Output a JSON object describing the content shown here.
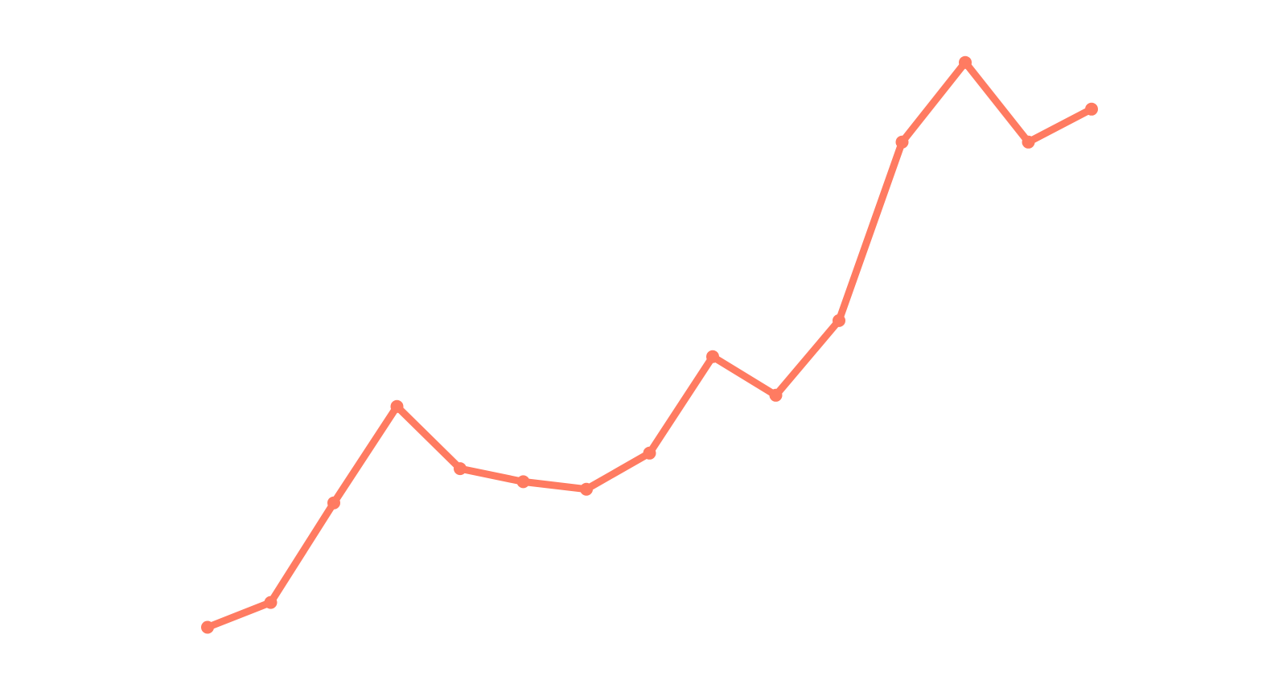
{
  "chart_data": {
    "type": "line",
    "title": "",
    "xlabel": "",
    "ylabel": "",
    "axes_visible": false,
    "grid": false,
    "legend": "none",
    "x": [
      1,
      2,
      3,
      4,
      5,
      6,
      7,
      8,
      9,
      10,
      11,
      12,
      13,
      14,
      15
    ],
    "series": [
      {
        "color": "#ff7b61",
        "markers": true,
        "values": [
          2,
          6,
          22,
          37.5,
          27.5,
          25.4,
          24.2,
          30,
          45.5,
          39.3,
          51.3,
          80,
          92.8,
          80,
          85.3
        ]
      }
    ],
    "ylim": [
      0,
      100
    ]
  }
}
